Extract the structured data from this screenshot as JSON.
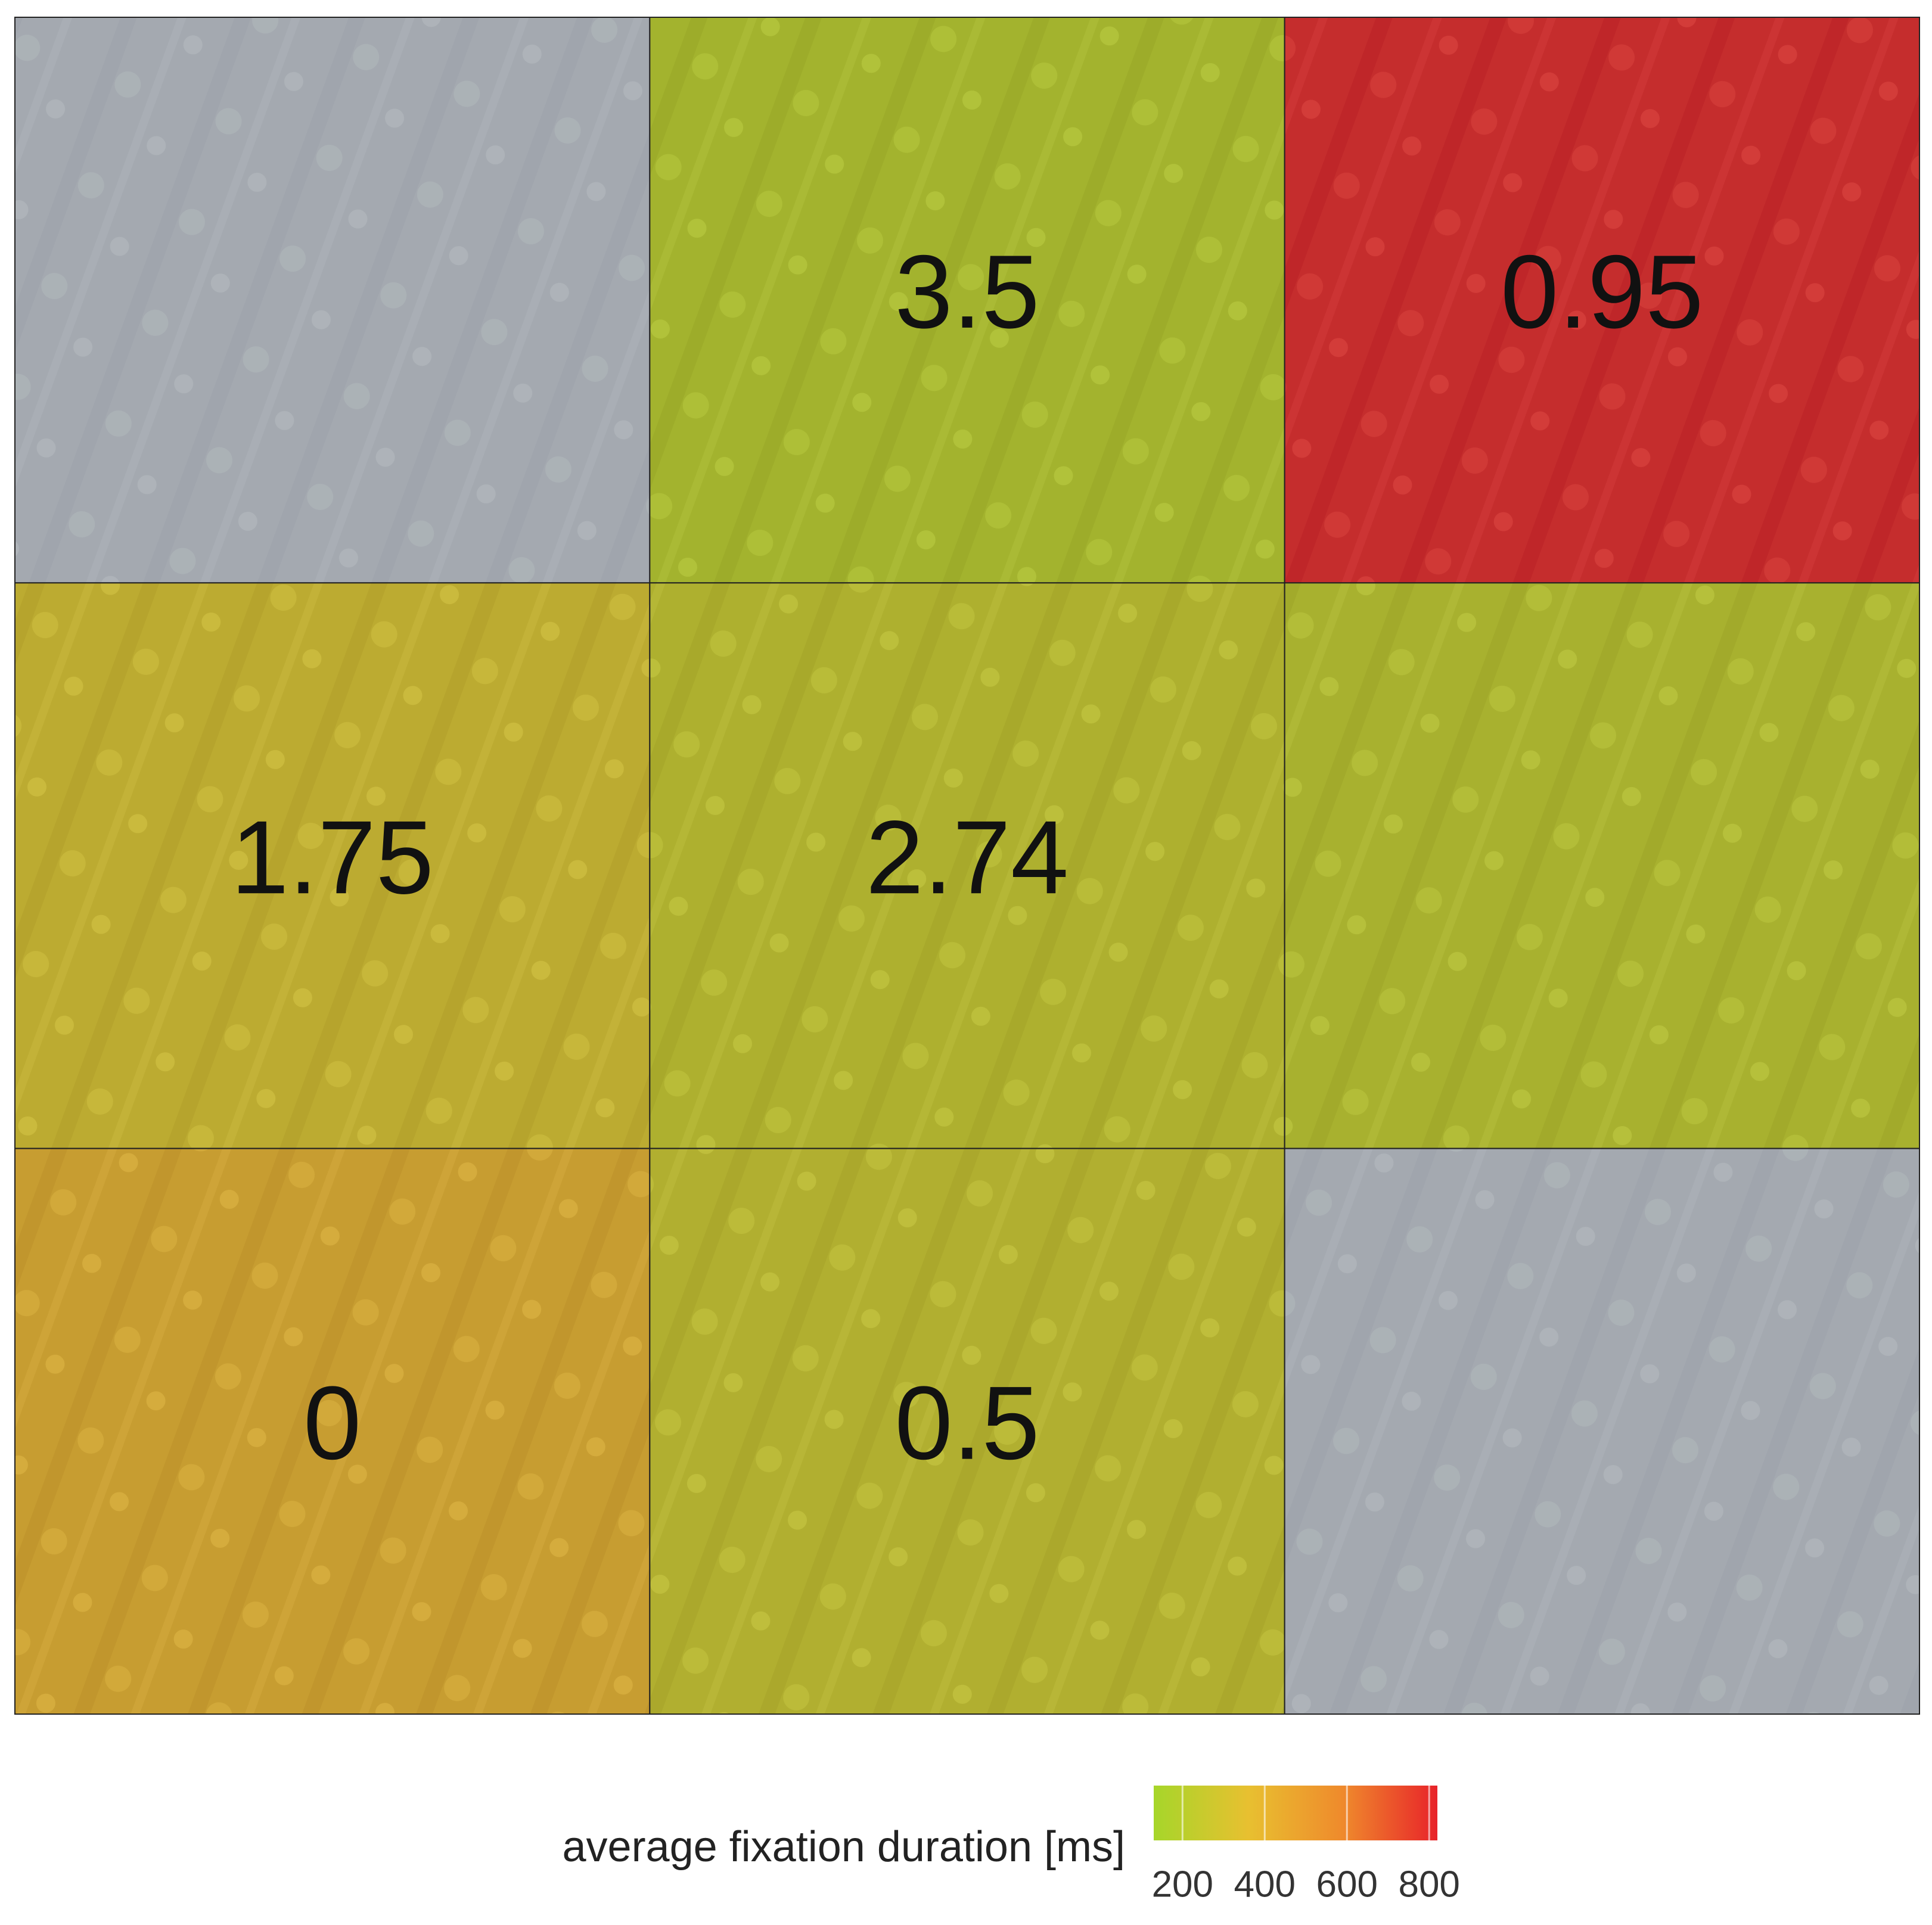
{
  "chart_data": {
    "type": "heatmap",
    "values": [
      [
        null,
        3.5,
        0.95
      ],
      [
        1.75,
        2.74,
        null
      ],
      [
        0,
        0.5,
        null
      ]
    ],
    "durations": [
      [
        null,
        210,
        820
      ],
      [
        320,
        260,
        230
      ],
      [
        420,
        270,
        null
      ]
    ],
    "null_color": "#b4b8c6",
    "colorbar": {
      "label": "average fixation duration [ms]",
      "lim": [
        130,
        820
      ],
      "ticks": [
        200,
        400,
        600,
        800
      ],
      "colors": [
        "#a6d62a",
        "#e8c030",
        "#ef8a2c",
        "#e8232a"
      ]
    }
  }
}
